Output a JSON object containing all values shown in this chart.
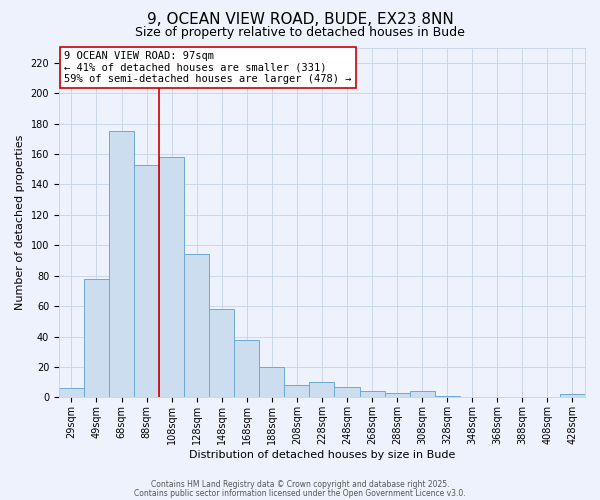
{
  "title": "9, OCEAN VIEW ROAD, BUDE, EX23 8NN",
  "subtitle": "Size of property relative to detached houses in Bude",
  "xlabel": "Distribution of detached houses by size in Bude",
  "ylabel": "Number of detached properties",
  "bar_labels": [
    "29sqm",
    "49sqm",
    "68sqm",
    "88sqm",
    "108sqm",
    "128sqm",
    "148sqm",
    "168sqm",
    "188sqm",
    "208sqm",
    "228sqm",
    "248sqm",
    "268sqm",
    "288sqm",
    "308sqm",
    "328sqm",
    "348sqm",
    "368sqm",
    "388sqm",
    "408sqm",
    "428sqm"
  ],
  "bar_values": [
    6,
    78,
    175,
    153,
    158,
    94,
    58,
    38,
    20,
    8,
    10,
    7,
    4,
    3,
    4,
    1,
    0,
    0,
    0,
    0,
    2
  ],
  "bar_color": "#ccddf0",
  "bar_edge_color": "#6aaad4",
  "vline_x_idx": 3.5,
  "vline_color": "#cc0000",
  "annotation_line1": "9 OCEAN VIEW ROAD: 97sqm",
  "annotation_line2": "← 41% of detached houses are smaller (331)",
  "annotation_line3": "59% of semi-detached houses are larger (478) →",
  "ylim": [
    0,
    230
  ],
  "yticks": [
    0,
    20,
    40,
    60,
    80,
    100,
    120,
    140,
    160,
    180,
    200,
    220
  ],
  "footnote1": "Contains HM Land Registry data © Crown copyright and database right 2025.",
  "footnote2": "Contains public sector information licensed under the Open Government Licence v3.0.",
  "bg_color": "#eef2fc",
  "grid_color": "#c5d4e8",
  "title_fontsize": 11,
  "subtitle_fontsize": 9,
  "axis_label_fontsize": 8,
  "tick_fontsize": 7,
  "annotation_fontsize": 7.5,
  "footnote_fontsize": 5.5
}
